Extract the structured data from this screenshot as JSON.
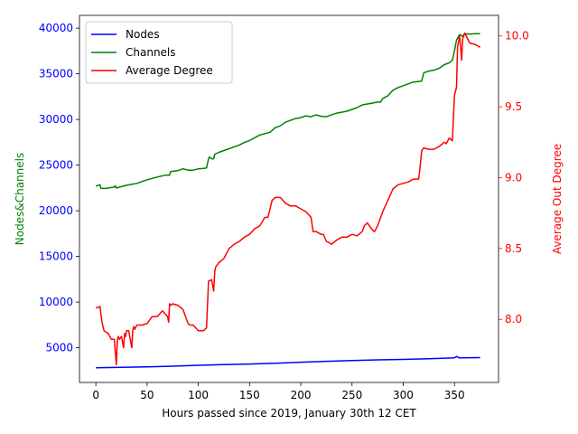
{
  "chart_data": {
    "type": "line",
    "xlabel": "Hours passed since 2019, January 30th 12 CET",
    "ylabel_left": "Nodes&Channels",
    "ylabel_right": "Average Out Degree",
    "xlim": [
      -16,
      393
    ],
    "ylim_left": [
      1200,
      41400
    ],
    "ylim_right": [
      7.555,
      10.145
    ],
    "x_ticks": [
      0,
      50,
      100,
      150,
      200,
      250,
      300,
      350
    ],
    "y_left_ticks": [
      5000,
      10000,
      15000,
      20000,
      25000,
      30000,
      35000,
      40000
    ],
    "y_right_ticks": [
      8.0,
      8.5,
      9.0,
      9.5,
      10.0
    ],
    "legend_position": "upper left",
    "colors": {
      "Nodes": "#0000ff",
      "Channels": "#008000",
      "Average Degree": "#ff0000",
      "left_axis": "#008000",
      "left_ticks": "#0000ff",
      "right_axis": "#ff0000"
    },
    "series": [
      {
        "name": "Nodes",
        "axis": "left",
        "color": "#0000ff",
        "x": [
          0,
          25,
          50,
          75,
          100,
          125,
          150,
          175,
          200,
          225,
          250,
          275,
          300,
          325,
          345,
          350,
          352,
          355,
          358,
          375
        ],
        "y": [
          2800,
          2850,
          2900,
          2980,
          3080,
          3150,
          3220,
          3300,
          3420,
          3520,
          3600,
          3680,
          3720,
          3800,
          3870,
          3900,
          4050,
          3880,
          3900,
          3920
        ]
      },
      {
        "name": "Channels",
        "axis": "left",
        "color": "#008000",
        "x": [
          0,
          4,
          5,
          10,
          15,
          18,
          19,
          20,
          25,
          30,
          40,
          50,
          60,
          68,
          72,
          73,
          80,
          85,
          90,
          95,
          100,
          105,
          108,
          110,
          111,
          113,
          115,
          116,
          120,
          130,
          140,
          145,
          150,
          160,
          170,
          175,
          180,
          185,
          190,
          195,
          200,
          205,
          210,
          215,
          220,
          225,
          230,
          235,
          240,
          245,
          250,
          255,
          260,
          265,
          270,
          275,
          278,
          280,
          285,
          290,
          295,
          300,
          305,
          310,
          318,
          320,
          325,
          330,
          335,
          340,
          345,
          348,
          350,
          352,
          355,
          358,
          360,
          365,
          370,
          375
        ],
        "y": [
          22700,
          22850,
          22450,
          22450,
          22550,
          22600,
          22750,
          22500,
          22650,
          22800,
          23000,
          23400,
          23700,
          23900,
          23900,
          24300,
          24400,
          24600,
          24450,
          24450,
          24600,
          24650,
          24700,
          25700,
          25900,
          25700,
          25700,
          26200,
          26400,
          26800,
          27200,
          27500,
          27700,
          28300,
          28600,
          29100,
          29300,
          29700,
          29900,
          30100,
          30200,
          30400,
          30300,
          30500,
          30350,
          30300,
          30500,
          30700,
          30800,
          30900,
          31100,
          31300,
          31600,
          31700,
          31800,
          31900,
          31900,
          32300,
          32600,
          33200,
          33500,
          33700,
          33900,
          34100,
          34200,
          35100,
          35300,
          35400,
          35600,
          36000,
          36200,
          36500,
          37500,
          38700,
          39300,
          39100,
          39400,
          39350,
          39400,
          39400
        ]
      },
      {
        "name": "Average Degree",
        "axis": "right",
        "color": "#ff0000",
        "x": [
          0,
          4,
          6,
          8,
          12,
          15,
          18,
          20,
          21,
          22,
          23,
          25,
          27,
          28,
          29,
          30,
          32,
          35,
          36,
          37,
          38,
          40,
          45,
          50,
          55,
          60,
          65,
          70,
          71,
          72,
          73,
          75,
          80,
          85,
          90,
          92,
          95,
          100,
          105,
          108,
          110,
          113,
          115,
          116,
          117,
          118,
          120,
          125,
          130,
          135,
          140,
          145,
          150,
          155,
          160,
          165,
          168,
          170,
          172,
          175,
          180,
          185,
          190,
          195,
          200,
          205,
          210,
          212,
          215,
          220,
          222,
          225,
          228,
          230,
          235,
          240,
          245,
          250,
          255,
          260,
          262,
          265,
          268,
          270,
          272,
          275,
          278,
          280,
          285,
          290,
          295,
          300,
          305,
          310,
          315,
          316,
          318,
          320,
          325,
          330,
          335,
          340,
          342,
          345,
          348,
          350,
          352,
          353,
          355,
          357,
          358,
          360,
          365,
          370,
          375
        ],
        "y": [
          8.08,
          8.09,
          7.98,
          7.92,
          7.9,
          7.86,
          7.86,
          7.68,
          7.86,
          7.88,
          7.86,
          7.88,
          7.8,
          7.9,
          7.88,
          7.92,
          7.92,
          7.8,
          7.92,
          7.95,
          7.93,
          7.96,
          7.96,
          7.97,
          8.02,
          8.02,
          8.06,
          8.02,
          7.98,
          8.11,
          8.1,
          8.11,
          8.1,
          8.07,
          7.97,
          7.96,
          7.96,
          7.92,
          7.92,
          7.94,
          8.27,
          8.28,
          8.2,
          8.34,
          8.37,
          8.38,
          8.4,
          8.43,
          8.5,
          8.53,
          8.55,
          8.58,
          8.6,
          8.64,
          8.66,
          8.72,
          8.72,
          8.78,
          8.84,
          8.86,
          8.86,
          8.82,
          8.8,
          8.8,
          8.78,
          8.76,
          8.72,
          8.62,
          8.62,
          8.6,
          8.6,
          8.55,
          8.54,
          8.53,
          8.56,
          8.58,
          8.58,
          8.6,
          8.59,
          8.62,
          8.66,
          8.68,
          8.65,
          8.63,
          8.62,
          8.66,
          8.72,
          8.76,
          8.84,
          8.92,
          8.95,
          8.96,
          8.97,
          8.99,
          8.99,
          9.04,
          9.19,
          9.21,
          9.2,
          9.2,
          9.22,
          9.25,
          9.24,
          9.28,
          9.26,
          9.58,
          9.64,
          9.92,
          10.0,
          9.83,
          9.98,
          10.02,
          9.95,
          9.94,
          9.92
        ]
      }
    ]
  }
}
